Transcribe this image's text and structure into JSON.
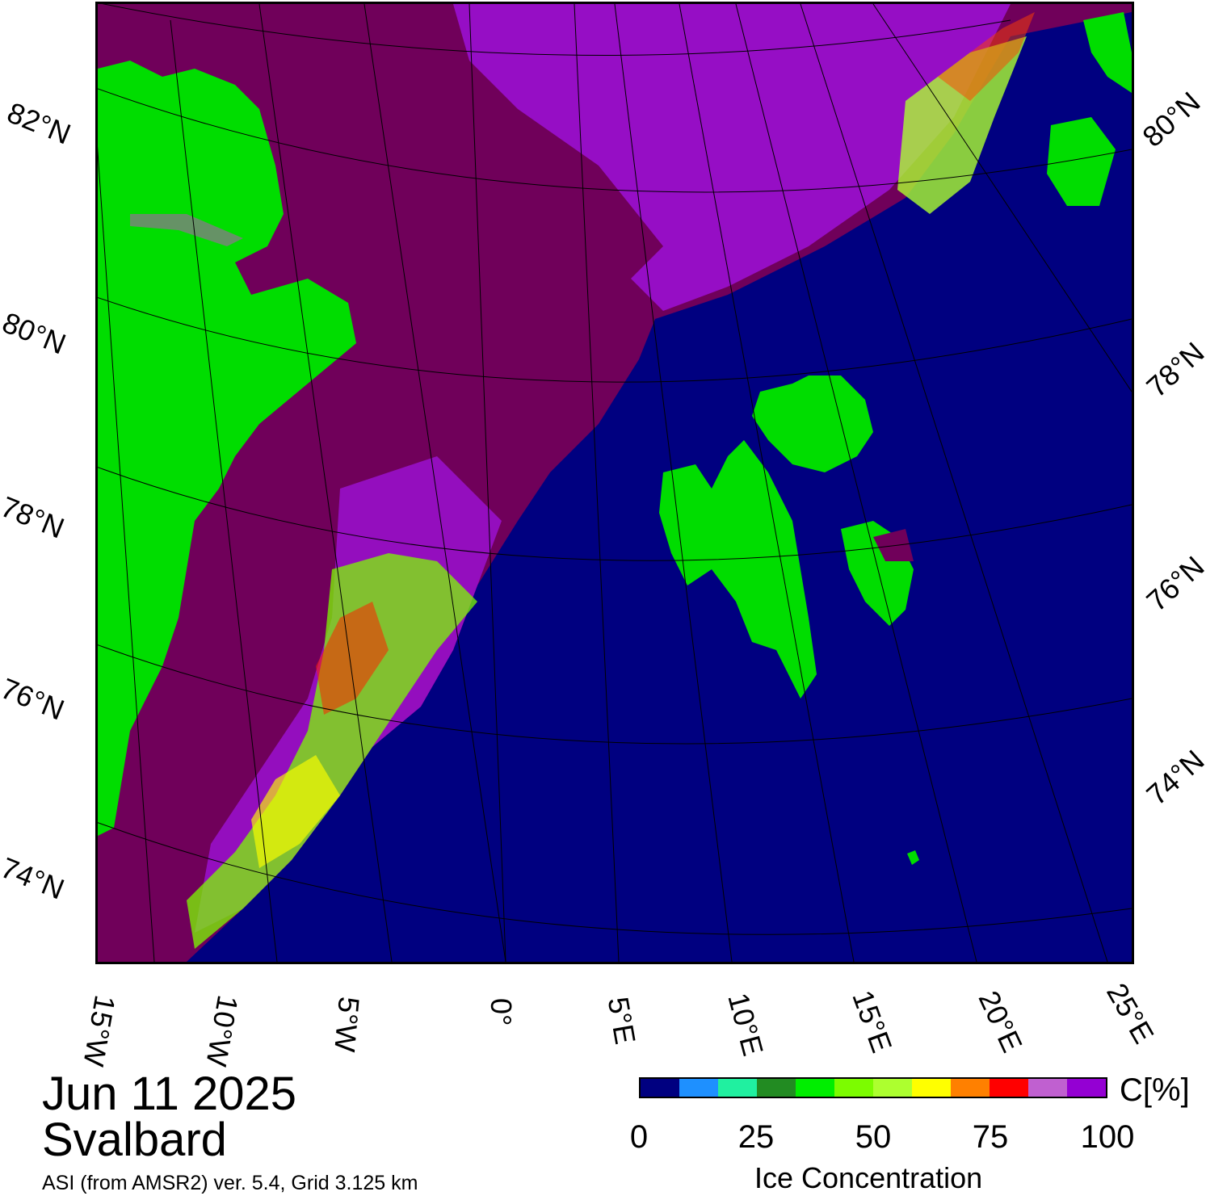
{
  "date": "Jun 11 2025",
  "region": "Svalbard",
  "source": "ASI (from AMSR2) ver. 5.4,  Grid 3.125 km",
  "lat_labels_left": [
    "82°N",
    "80°N",
    "78°N",
    "76°N",
    "74°N"
  ],
  "lat_labels_right": [
    "80°N",
    "78°N",
    "76°N",
    "74°N"
  ],
  "lon_labels": [
    "15°W",
    "10°W",
    "5°W",
    "0°",
    "5°E",
    "10°E",
    "15°E",
    "20°E",
    "25°E"
  ],
  "colorbar": {
    "unit": "C[%]",
    "title": "Ice Concentration",
    "ticks": [
      "0",
      "25",
      "50",
      "75",
      "100"
    ],
    "colors": [
      "#000080",
      "#1e90ff",
      "#20f0a0",
      "#228b22",
      "#00ee00",
      "#7cfc00",
      "#adff2f",
      "#ffff00",
      "#ff8000",
      "#ff0000",
      "#c060d0",
      "#9400d3"
    ]
  },
  "colors": {
    "open_water": "#000080",
    "land": "#00dd00",
    "pack_ice": "#70005a",
    "ice_edge": "#9a10d0"
  }
}
